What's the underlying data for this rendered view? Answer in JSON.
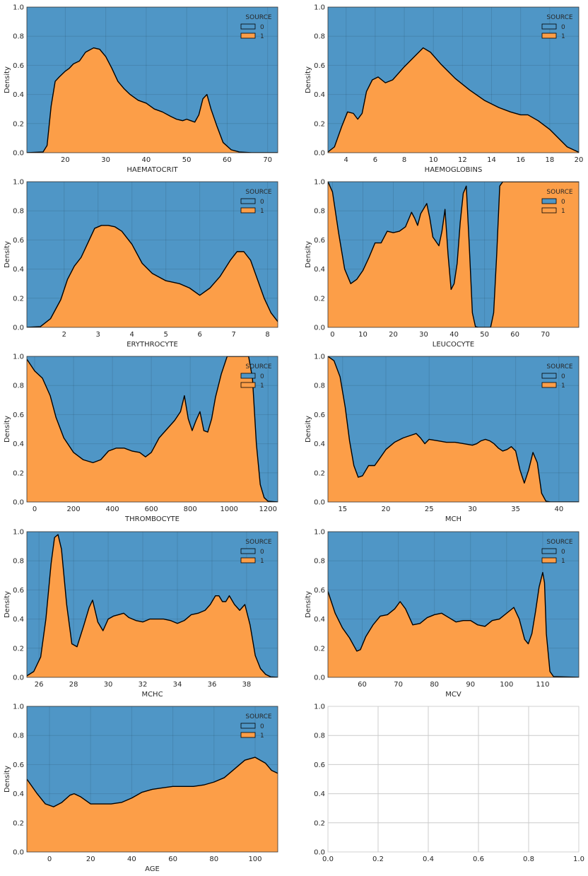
{
  "figure": {
    "colors": {
      "source_0": "#4f96c6",
      "source_1": "#fc9e48",
      "outline": "#000000",
      "grid": "#cbcbcb"
    }
  },
  "chart_data": [
    {
      "type": "area",
      "stacking": "fill",
      "xlabel": "HAEMATOCRIT",
      "ylabel": "Density",
      "xlim": [
        10.5,
        72.5
      ],
      "ylim": [
        0,
        1
      ],
      "xticks": [
        20,
        30,
        40,
        50,
        60,
        70
      ],
      "yticks": [
        0,
        0.2,
        0.4,
        0.6,
        0.8,
        1.0
      ],
      "ytick_labels": [
        "0.0",
        "0.2",
        "0.4",
        "0.6",
        "0.8",
        "1.0"
      ],
      "legend": {
        "title": "SOURCE",
        "labels": [
          "0",
          "1"
        ],
        "position": "top-right"
      },
      "x": [
        10.5,
        14.5,
        15.5,
        16.5,
        17.5,
        18.5,
        20,
        21,
        22,
        23.5,
        25,
        27,
        28.5,
        30,
        31.5,
        33,
        34.5,
        36,
        38,
        40,
        42,
        44,
        46,
        47.5,
        49,
        50,
        51,
        52,
        53,
        54,
        55,
        56,
        57.5,
        59,
        61,
        63,
        66,
        72.5
      ],
      "series": [
        {
          "name": "0",
          "fill": "rest"
        },
        {
          "name": "1",
          "values": [
            0,
            0.005,
            0.05,
            0.32,
            0.49,
            0.52,
            0.56,
            0.58,
            0.61,
            0.63,
            0.69,
            0.72,
            0.71,
            0.66,
            0.58,
            0.49,
            0.44,
            0.4,
            0.36,
            0.34,
            0.3,
            0.28,
            0.25,
            0.23,
            0.22,
            0.23,
            0.22,
            0.21,
            0.26,
            0.37,
            0.4,
            0.3,
            0.18,
            0.07,
            0.02,
            0.005,
            0,
            0
          ]
        }
      ]
    },
    {
      "type": "area",
      "stacking": "fill",
      "xlabel": "HAEMOGLOBINS",
      "ylabel": "Density",
      "xlim": [
        2.75,
        20
      ],
      "ylim": [
        0,
        1
      ],
      "xticks": [
        4,
        6,
        8,
        10,
        12,
        14,
        16,
        18,
        20
      ],
      "yticks": [
        0,
        0.2,
        0.4,
        0.6,
        0.8,
        1.0
      ],
      "ytick_labels": [
        "0.0",
        "0.2",
        "0.4",
        "0.6",
        "0.8",
        "1.0"
      ],
      "legend": {
        "title": "SOURCE",
        "labels": [
          "0",
          "1"
        ],
        "position": "top-right"
      },
      "x": [
        2.75,
        3.2,
        3.7,
        4.1,
        4.5,
        4.8,
        5.1,
        5.4,
        5.8,
        6.2,
        6.7,
        7.2,
        8,
        8.7,
        9.3,
        9.8,
        10.5,
        11.5,
        12.5,
        13.5,
        14.5,
        15.3,
        16,
        16.5,
        17.2,
        18,
        18.6,
        19.2,
        20
      ],
      "series": [
        {
          "name": "0",
          "fill": "rest"
        },
        {
          "name": "1",
          "values": [
            0.005,
            0.04,
            0.18,
            0.28,
            0.27,
            0.23,
            0.27,
            0.42,
            0.5,
            0.52,
            0.48,
            0.5,
            0.59,
            0.66,
            0.72,
            0.69,
            0.61,
            0.51,
            0.43,
            0.36,
            0.31,
            0.28,
            0.26,
            0.26,
            0.22,
            0.16,
            0.1,
            0.04,
            0.003
          ]
        }
      ]
    },
    {
      "type": "area",
      "stacking": "fill",
      "xlabel": "ERYTHROCYTE",
      "ylabel": "Density",
      "xlim": [
        0.9,
        8.3
      ],
      "ylim": [
        0,
        1
      ],
      "xticks": [
        2,
        3,
        4,
        5,
        6,
        7,
        8
      ],
      "yticks": [
        0,
        0.2,
        0.4,
        0.6,
        0.8,
        1.0
      ],
      "ytick_labels": [
        "0.0",
        "0.2",
        "0.4",
        "0.6",
        "0.8",
        "1.0"
      ],
      "legend": {
        "title": "SOURCE",
        "labels": [
          "0",
          "1"
        ],
        "position": "top-right"
      },
      "x": [
        0.9,
        1.3,
        1.6,
        1.9,
        2.1,
        2.3,
        2.5,
        2.7,
        2.9,
        3.1,
        3.3,
        3.5,
        3.7,
        4.0,
        4.3,
        4.6,
        5.0,
        5.4,
        5.7,
        6.0,
        6.3,
        6.6,
        6.9,
        7.1,
        7.3,
        7.5,
        7.7,
        7.9,
        8.1,
        8.3
      ],
      "series": [
        {
          "name": "0",
          "fill": "rest"
        },
        {
          "name": "1",
          "values": [
            0,
            0.005,
            0.06,
            0.19,
            0.33,
            0.42,
            0.48,
            0.58,
            0.68,
            0.7,
            0.7,
            0.69,
            0.66,
            0.57,
            0.44,
            0.37,
            0.32,
            0.3,
            0.27,
            0.22,
            0.27,
            0.35,
            0.46,
            0.52,
            0.52,
            0.46,
            0.33,
            0.2,
            0.1,
            0.04
          ]
        }
      ]
    },
    {
      "type": "area",
      "stacking": "fill",
      "xlabel": "LEUCOCYTE",
      "ylabel": "Density",
      "xlim": [
        -1.5,
        81
      ],
      "ylim": [
        0,
        1
      ],
      "xticks": [
        0,
        10,
        20,
        30,
        40,
        50,
        60,
        70
      ],
      "yticks": [
        0,
        0.2,
        0.4,
        0.6,
        0.8,
        1.0
      ],
      "ytick_labels": [
        "0.0",
        "0.2",
        "0.4",
        "0.6",
        "0.8",
        "1.0"
      ],
      "legend": {
        "title": "SOURCE",
        "labels": [
          "0",
          "1"
        ],
        "position": "top-right"
      },
      "x": [
        -1.5,
        0,
        2,
        4,
        6,
        8,
        10,
        12,
        14,
        16,
        18,
        20,
        22,
        24,
        26,
        27,
        28,
        29,
        31,
        32,
        33,
        35,
        36,
        37,
        38,
        39,
        40,
        41,
        42,
        43,
        44,
        45,
        46,
        47,
        48,
        50,
        52,
        53,
        54,
        55,
        56,
        60,
        70,
        81
      ],
      "series": [
        {
          "name": "0",
          "fill": "rest"
        },
        {
          "name": "1",
          "values": [
            1.0,
            0.93,
            0.65,
            0.4,
            0.3,
            0.33,
            0.39,
            0.48,
            0.58,
            0.58,
            0.66,
            0.65,
            0.66,
            0.69,
            0.79,
            0.75,
            0.7,
            0.78,
            0.85,
            0.75,
            0.62,
            0.56,
            0.66,
            0.81,
            0.5,
            0.26,
            0.3,
            0.44,
            0.72,
            0.92,
            0.97,
            0.55,
            0.1,
            0.005,
            0,
            0,
            0,
            0.1,
            0.5,
            0.97,
            1.0,
            1.0,
            1.0,
            1.0
          ]
        }
      ]
    },
    {
      "type": "area",
      "stacking": "fill",
      "xlabel": "THROMBOCYTE",
      "ylabel": "Density",
      "xlim": [
        -40,
        1250
      ],
      "ylim": [
        0,
        1
      ],
      "xticks": [
        0,
        200,
        400,
        600,
        800,
        1000,
        1200
      ],
      "yticks": [
        0,
        0.2,
        0.4,
        0.6,
        0.8,
        1.0
      ],
      "ytick_labels": [
        "0.0",
        "0.2",
        "0.4",
        "0.6",
        "0.8",
        "1.0"
      ],
      "legend": {
        "title": "SOURCE",
        "labels": [
          "0",
          "1"
        ],
        "position": "top-right"
      },
      "x": [
        -40,
        0,
        40,
        80,
        110,
        150,
        200,
        250,
        300,
        340,
        380,
        420,
        460,
        500,
        540,
        570,
        600,
        640,
        680,
        720,
        750,
        770,
        790,
        810,
        830,
        850,
        870,
        890,
        910,
        930,
        960,
        990,
        1020,
        1060,
        1100,
        1120,
        1140,
        1160,
        1180,
        1200,
        1250
      ],
      "series": [
        {
          "name": "0",
          "fill": "rest"
        },
        {
          "name": "1",
          "values": [
            0.98,
            0.9,
            0.85,
            0.73,
            0.58,
            0.44,
            0.34,
            0.29,
            0.27,
            0.29,
            0.35,
            0.37,
            0.37,
            0.35,
            0.34,
            0.31,
            0.34,
            0.44,
            0.5,
            0.56,
            0.62,
            0.73,
            0.57,
            0.49,
            0.56,
            0.62,
            0.49,
            0.48,
            0.57,
            0.72,
            0.88,
            1.0,
            1.0,
            1.0,
            1.0,
            0.85,
            0.4,
            0.12,
            0.03,
            0.005,
            0
          ]
        }
      ]
    },
    {
      "type": "area",
      "stacking": "fill",
      "xlabel": "MCH",
      "ylabel": "Density",
      "xlim": [
        13.3,
        42.3
      ],
      "ylim": [
        0,
        1
      ],
      "xticks": [
        15,
        20,
        25,
        30,
        35,
        40
      ],
      "yticks": [
        0,
        0.2,
        0.4,
        0.6,
        0.8,
        1.0
      ],
      "ytick_labels": [
        "0.0",
        "0.2",
        "0.4",
        "0.6",
        "0.8",
        "1.0"
      ],
      "legend": {
        "title": "SOURCE",
        "labels": [
          "0",
          "1"
        ],
        "position": "top-right"
      },
      "x": [
        13.3,
        14,
        14.7,
        15.3,
        15.8,
        16.3,
        16.8,
        17.3,
        18,
        18.7,
        19.3,
        20,
        21,
        22,
        23,
        23.5,
        24,
        24.5,
        25,
        26,
        27,
        28,
        29,
        30,
        30.5,
        31,
        31.5,
        32,
        32.5,
        33,
        33.5,
        34,
        34.5,
        35,
        35.5,
        36,
        36.5,
        37,
        37.5,
        38,
        38.5,
        39,
        40,
        42.3
      ],
      "series": [
        {
          "name": "0",
          "fill": "rest"
        },
        {
          "name": "1",
          "values": [
            1.0,
            0.97,
            0.86,
            0.65,
            0.42,
            0.25,
            0.17,
            0.18,
            0.25,
            0.25,
            0.3,
            0.36,
            0.41,
            0.44,
            0.46,
            0.47,
            0.44,
            0.4,
            0.43,
            0.42,
            0.41,
            0.41,
            0.4,
            0.39,
            0.4,
            0.42,
            0.43,
            0.42,
            0.4,
            0.37,
            0.35,
            0.36,
            0.38,
            0.35,
            0.22,
            0.13,
            0.22,
            0.34,
            0.27,
            0.06,
            0.005,
            0,
            0,
            0
          ]
        }
      ]
    },
    {
      "type": "area",
      "stacking": "fill",
      "xlabel": "MCHC",
      "ylabel": "Density",
      "xlim": [
        25.3,
        39.8
      ],
      "ylim": [
        0,
        1
      ],
      "xticks": [
        26,
        28,
        30,
        32,
        34,
        36,
        38
      ],
      "yticks": [
        0,
        0.2,
        0.4,
        0.6,
        0.8,
        1.0
      ],
      "ytick_labels": [
        "0.0",
        "0.2",
        "0.4",
        "0.6",
        "0.8",
        "1.0"
      ],
      "legend": {
        "title": "SOURCE",
        "labels": [
          "0",
          "1"
        ],
        "position": "top-right"
      },
      "x": [
        25.3,
        25.7,
        26.1,
        26.4,
        26.7,
        26.9,
        27.1,
        27.3,
        27.6,
        27.9,
        28.2,
        28.6,
        28.9,
        29.1,
        29.4,
        29.7,
        30.0,
        30.3,
        30.6,
        30.9,
        31.2,
        31.6,
        32.0,
        32.4,
        32.8,
        33.2,
        33.6,
        34.0,
        34.4,
        34.8,
        35.2,
        35.6,
        35.9,
        36.2,
        36.4,
        36.6,
        36.8,
        37.0,
        37.3,
        37.6,
        37.9,
        38.2,
        38.5,
        38.8,
        39.1,
        39.4,
        39.8
      ],
      "series": [
        {
          "name": "0",
          "fill": "rest"
        },
        {
          "name": "1",
          "values": [
            0.01,
            0.04,
            0.14,
            0.4,
            0.78,
            0.96,
            0.98,
            0.88,
            0.5,
            0.23,
            0.21,
            0.36,
            0.48,
            0.53,
            0.38,
            0.32,
            0.4,
            0.42,
            0.43,
            0.44,
            0.41,
            0.39,
            0.38,
            0.4,
            0.4,
            0.4,
            0.39,
            0.37,
            0.39,
            0.43,
            0.44,
            0.46,
            0.5,
            0.56,
            0.56,
            0.52,
            0.52,
            0.56,
            0.5,
            0.46,
            0.5,
            0.36,
            0.15,
            0.06,
            0.02,
            0.003,
            0
          ]
        }
      ]
    },
    {
      "type": "area",
      "stacking": "fill",
      "xlabel": "MCV",
      "ylabel": "Density",
      "xlim": [
        50.5,
        120
      ],
      "ylim": [
        0,
        1
      ],
      "xticks": [
        60,
        70,
        80,
        90,
        100,
        110
      ],
      "yticks": [
        0,
        0.2,
        0.4,
        0.6,
        0.8,
        1.0
      ],
      "ytick_labels": [
        "0.0",
        "0.2",
        "0.4",
        "0.6",
        "0.8",
        "1.0"
      ],
      "legend": {
        "title": "SOURCE",
        "labels": [
          "0",
          "1"
        ],
        "position": "top-right"
      },
      "x": [
        50.5,
        52.5,
        54.5,
        56.5,
        58.5,
        59.5,
        61,
        63,
        65,
        67,
        69,
        70.5,
        72,
        74,
        76,
        78,
        80,
        82,
        84,
        86,
        88,
        90,
        92,
        94,
        96,
        98,
        100,
        102,
        103.5,
        105,
        106,
        107,
        108,
        109,
        110,
        110.5,
        111,
        112,
        113,
        120
      ],
      "series": [
        {
          "name": "0",
          "fill": "rest"
        },
        {
          "name": "1",
          "values": [
            0.59,
            0.44,
            0.34,
            0.27,
            0.18,
            0.19,
            0.28,
            0.36,
            0.42,
            0.43,
            0.47,
            0.52,
            0.47,
            0.36,
            0.37,
            0.41,
            0.43,
            0.44,
            0.41,
            0.38,
            0.39,
            0.39,
            0.36,
            0.35,
            0.39,
            0.4,
            0.44,
            0.48,
            0.4,
            0.26,
            0.23,
            0.3,
            0.45,
            0.62,
            0.72,
            0.65,
            0.3,
            0.04,
            0.005,
            0
          ]
        }
      ]
    },
    {
      "type": "area",
      "stacking": "fill",
      "xlabel": "AGE",
      "ylabel": "Density",
      "xlim": [
        -11,
        111
      ],
      "ylim": [
        0,
        1
      ],
      "xticks": [
        0,
        20,
        40,
        60,
        80,
        100
      ],
      "yticks": [
        0,
        0.2,
        0.4,
        0.6,
        0.8,
        1.0
      ],
      "ytick_labels": [
        "0.0",
        "0.2",
        "0.4",
        "0.6",
        "0.8",
        "1.0"
      ],
      "legend": {
        "title": "SOURCE",
        "labels": [
          "0",
          "1"
        ],
        "position": "top-right"
      },
      "x": [
        -11,
        -6,
        -2,
        2,
        6,
        10,
        12,
        15,
        20,
        25,
        30,
        35,
        40,
        45,
        50,
        55,
        60,
        65,
        70,
        75,
        80,
        85,
        90,
        95,
        100,
        105,
        108,
        111
      ],
      "series": [
        {
          "name": "0",
          "fill": "rest"
        },
        {
          "name": "1",
          "values": [
            0.5,
            0.4,
            0.33,
            0.31,
            0.34,
            0.39,
            0.4,
            0.38,
            0.33,
            0.33,
            0.33,
            0.34,
            0.37,
            0.41,
            0.43,
            0.44,
            0.45,
            0.45,
            0.45,
            0.46,
            0.48,
            0.51,
            0.57,
            0.63,
            0.65,
            0.61,
            0.56,
            0.54
          ]
        }
      ]
    },
    {
      "type": "area",
      "empty": true,
      "xlabel": "",
      "ylabel": "",
      "xlim": [
        0,
        1
      ],
      "ylim": [
        0,
        1
      ],
      "xticks": [
        0,
        0.2,
        0.4,
        0.6,
        0.8,
        1.0
      ],
      "xtick_labels": [
        "0.0",
        "0.2",
        "0.4",
        "0.6",
        "0.8",
        "1.0"
      ],
      "yticks": [
        0,
        0.2,
        0.4,
        0.6,
        0.8,
        1.0
      ],
      "ytick_labels": [
        "0.0",
        "0.2",
        "0.4",
        "0.6",
        "0.8",
        "1.0"
      ],
      "x": [],
      "series": []
    }
  ]
}
